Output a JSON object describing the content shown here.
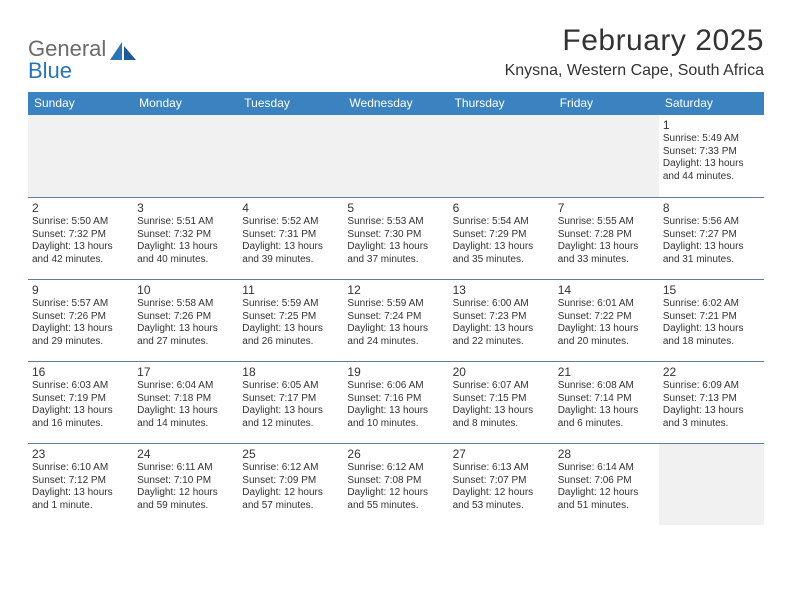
{
  "logo": {
    "word1": "General",
    "word2": "Blue"
  },
  "title": "February 2025",
  "location": "Knysna, Western Cape, South Africa",
  "colors": {
    "header_bg": "#3b83c0",
    "header_text": "#ffffff",
    "border": "#5a7fa3",
    "text": "#333333",
    "logo_gray": "#6b6b6b",
    "logo_blue": "#2b74b8",
    "empty_bg": "#f1f1f1",
    "page_bg": "#ffffff"
  },
  "typography": {
    "title_fontsize": 30,
    "location_fontsize": 16,
    "dayhead_fontsize": 12,
    "daynum_fontsize": 12,
    "detail_fontsize": 10
  },
  "day_headers": [
    "Sunday",
    "Monday",
    "Tuesday",
    "Wednesday",
    "Thursday",
    "Friday",
    "Saturday"
  ],
  "weeks": [
    [
      {
        "n": "",
        "sr": "",
        "ss": "",
        "dl": ""
      },
      {
        "n": "",
        "sr": "",
        "ss": "",
        "dl": ""
      },
      {
        "n": "",
        "sr": "",
        "ss": "",
        "dl": ""
      },
      {
        "n": "",
        "sr": "",
        "ss": "",
        "dl": ""
      },
      {
        "n": "",
        "sr": "",
        "ss": "",
        "dl": ""
      },
      {
        "n": "",
        "sr": "",
        "ss": "",
        "dl": ""
      },
      {
        "n": "1",
        "sr": "Sunrise: 5:49 AM",
        "ss": "Sunset: 7:33 PM",
        "dl": "Daylight: 13 hours and 44 minutes."
      }
    ],
    [
      {
        "n": "2",
        "sr": "Sunrise: 5:50 AM",
        "ss": "Sunset: 7:32 PM",
        "dl": "Daylight: 13 hours and 42 minutes."
      },
      {
        "n": "3",
        "sr": "Sunrise: 5:51 AM",
        "ss": "Sunset: 7:32 PM",
        "dl": "Daylight: 13 hours and 40 minutes."
      },
      {
        "n": "4",
        "sr": "Sunrise: 5:52 AM",
        "ss": "Sunset: 7:31 PM",
        "dl": "Daylight: 13 hours and 39 minutes."
      },
      {
        "n": "5",
        "sr": "Sunrise: 5:53 AM",
        "ss": "Sunset: 7:30 PM",
        "dl": "Daylight: 13 hours and 37 minutes."
      },
      {
        "n": "6",
        "sr": "Sunrise: 5:54 AM",
        "ss": "Sunset: 7:29 PM",
        "dl": "Daylight: 13 hours and 35 minutes."
      },
      {
        "n": "7",
        "sr": "Sunrise: 5:55 AM",
        "ss": "Sunset: 7:28 PM",
        "dl": "Daylight: 13 hours and 33 minutes."
      },
      {
        "n": "8",
        "sr": "Sunrise: 5:56 AM",
        "ss": "Sunset: 7:27 PM",
        "dl": "Daylight: 13 hours and 31 minutes."
      }
    ],
    [
      {
        "n": "9",
        "sr": "Sunrise: 5:57 AM",
        "ss": "Sunset: 7:26 PM",
        "dl": "Daylight: 13 hours and 29 minutes."
      },
      {
        "n": "10",
        "sr": "Sunrise: 5:58 AM",
        "ss": "Sunset: 7:26 PM",
        "dl": "Daylight: 13 hours and 27 minutes."
      },
      {
        "n": "11",
        "sr": "Sunrise: 5:59 AM",
        "ss": "Sunset: 7:25 PM",
        "dl": "Daylight: 13 hours and 26 minutes."
      },
      {
        "n": "12",
        "sr": "Sunrise: 5:59 AM",
        "ss": "Sunset: 7:24 PM",
        "dl": "Daylight: 13 hours and 24 minutes."
      },
      {
        "n": "13",
        "sr": "Sunrise: 6:00 AM",
        "ss": "Sunset: 7:23 PM",
        "dl": "Daylight: 13 hours and 22 minutes."
      },
      {
        "n": "14",
        "sr": "Sunrise: 6:01 AM",
        "ss": "Sunset: 7:22 PM",
        "dl": "Daylight: 13 hours and 20 minutes."
      },
      {
        "n": "15",
        "sr": "Sunrise: 6:02 AM",
        "ss": "Sunset: 7:21 PM",
        "dl": "Daylight: 13 hours and 18 minutes."
      }
    ],
    [
      {
        "n": "16",
        "sr": "Sunrise: 6:03 AM",
        "ss": "Sunset: 7:19 PM",
        "dl": "Daylight: 13 hours and 16 minutes."
      },
      {
        "n": "17",
        "sr": "Sunrise: 6:04 AM",
        "ss": "Sunset: 7:18 PM",
        "dl": "Daylight: 13 hours and 14 minutes."
      },
      {
        "n": "18",
        "sr": "Sunrise: 6:05 AM",
        "ss": "Sunset: 7:17 PM",
        "dl": "Daylight: 13 hours and 12 minutes."
      },
      {
        "n": "19",
        "sr": "Sunrise: 6:06 AM",
        "ss": "Sunset: 7:16 PM",
        "dl": "Daylight: 13 hours and 10 minutes."
      },
      {
        "n": "20",
        "sr": "Sunrise: 6:07 AM",
        "ss": "Sunset: 7:15 PM",
        "dl": "Daylight: 13 hours and 8 minutes."
      },
      {
        "n": "21",
        "sr": "Sunrise: 6:08 AM",
        "ss": "Sunset: 7:14 PM",
        "dl": "Daylight: 13 hours and 6 minutes."
      },
      {
        "n": "22",
        "sr": "Sunrise: 6:09 AM",
        "ss": "Sunset: 7:13 PM",
        "dl": "Daylight: 13 hours and 3 minutes."
      }
    ],
    [
      {
        "n": "23",
        "sr": "Sunrise: 6:10 AM",
        "ss": "Sunset: 7:12 PM",
        "dl": "Daylight: 13 hours and 1 minute."
      },
      {
        "n": "24",
        "sr": "Sunrise: 6:11 AM",
        "ss": "Sunset: 7:10 PM",
        "dl": "Daylight: 12 hours and 59 minutes."
      },
      {
        "n": "25",
        "sr": "Sunrise: 6:12 AM",
        "ss": "Sunset: 7:09 PM",
        "dl": "Daylight: 12 hours and 57 minutes."
      },
      {
        "n": "26",
        "sr": "Sunrise: 6:12 AM",
        "ss": "Sunset: 7:08 PM",
        "dl": "Daylight: 12 hours and 55 minutes."
      },
      {
        "n": "27",
        "sr": "Sunrise: 6:13 AM",
        "ss": "Sunset: 7:07 PM",
        "dl": "Daylight: 12 hours and 53 minutes."
      },
      {
        "n": "28",
        "sr": "Sunrise: 6:14 AM",
        "ss": "Sunset: 7:06 PM",
        "dl": "Daylight: 12 hours and 51 minutes."
      },
      {
        "n": "",
        "sr": "",
        "ss": "",
        "dl": ""
      }
    ]
  ]
}
